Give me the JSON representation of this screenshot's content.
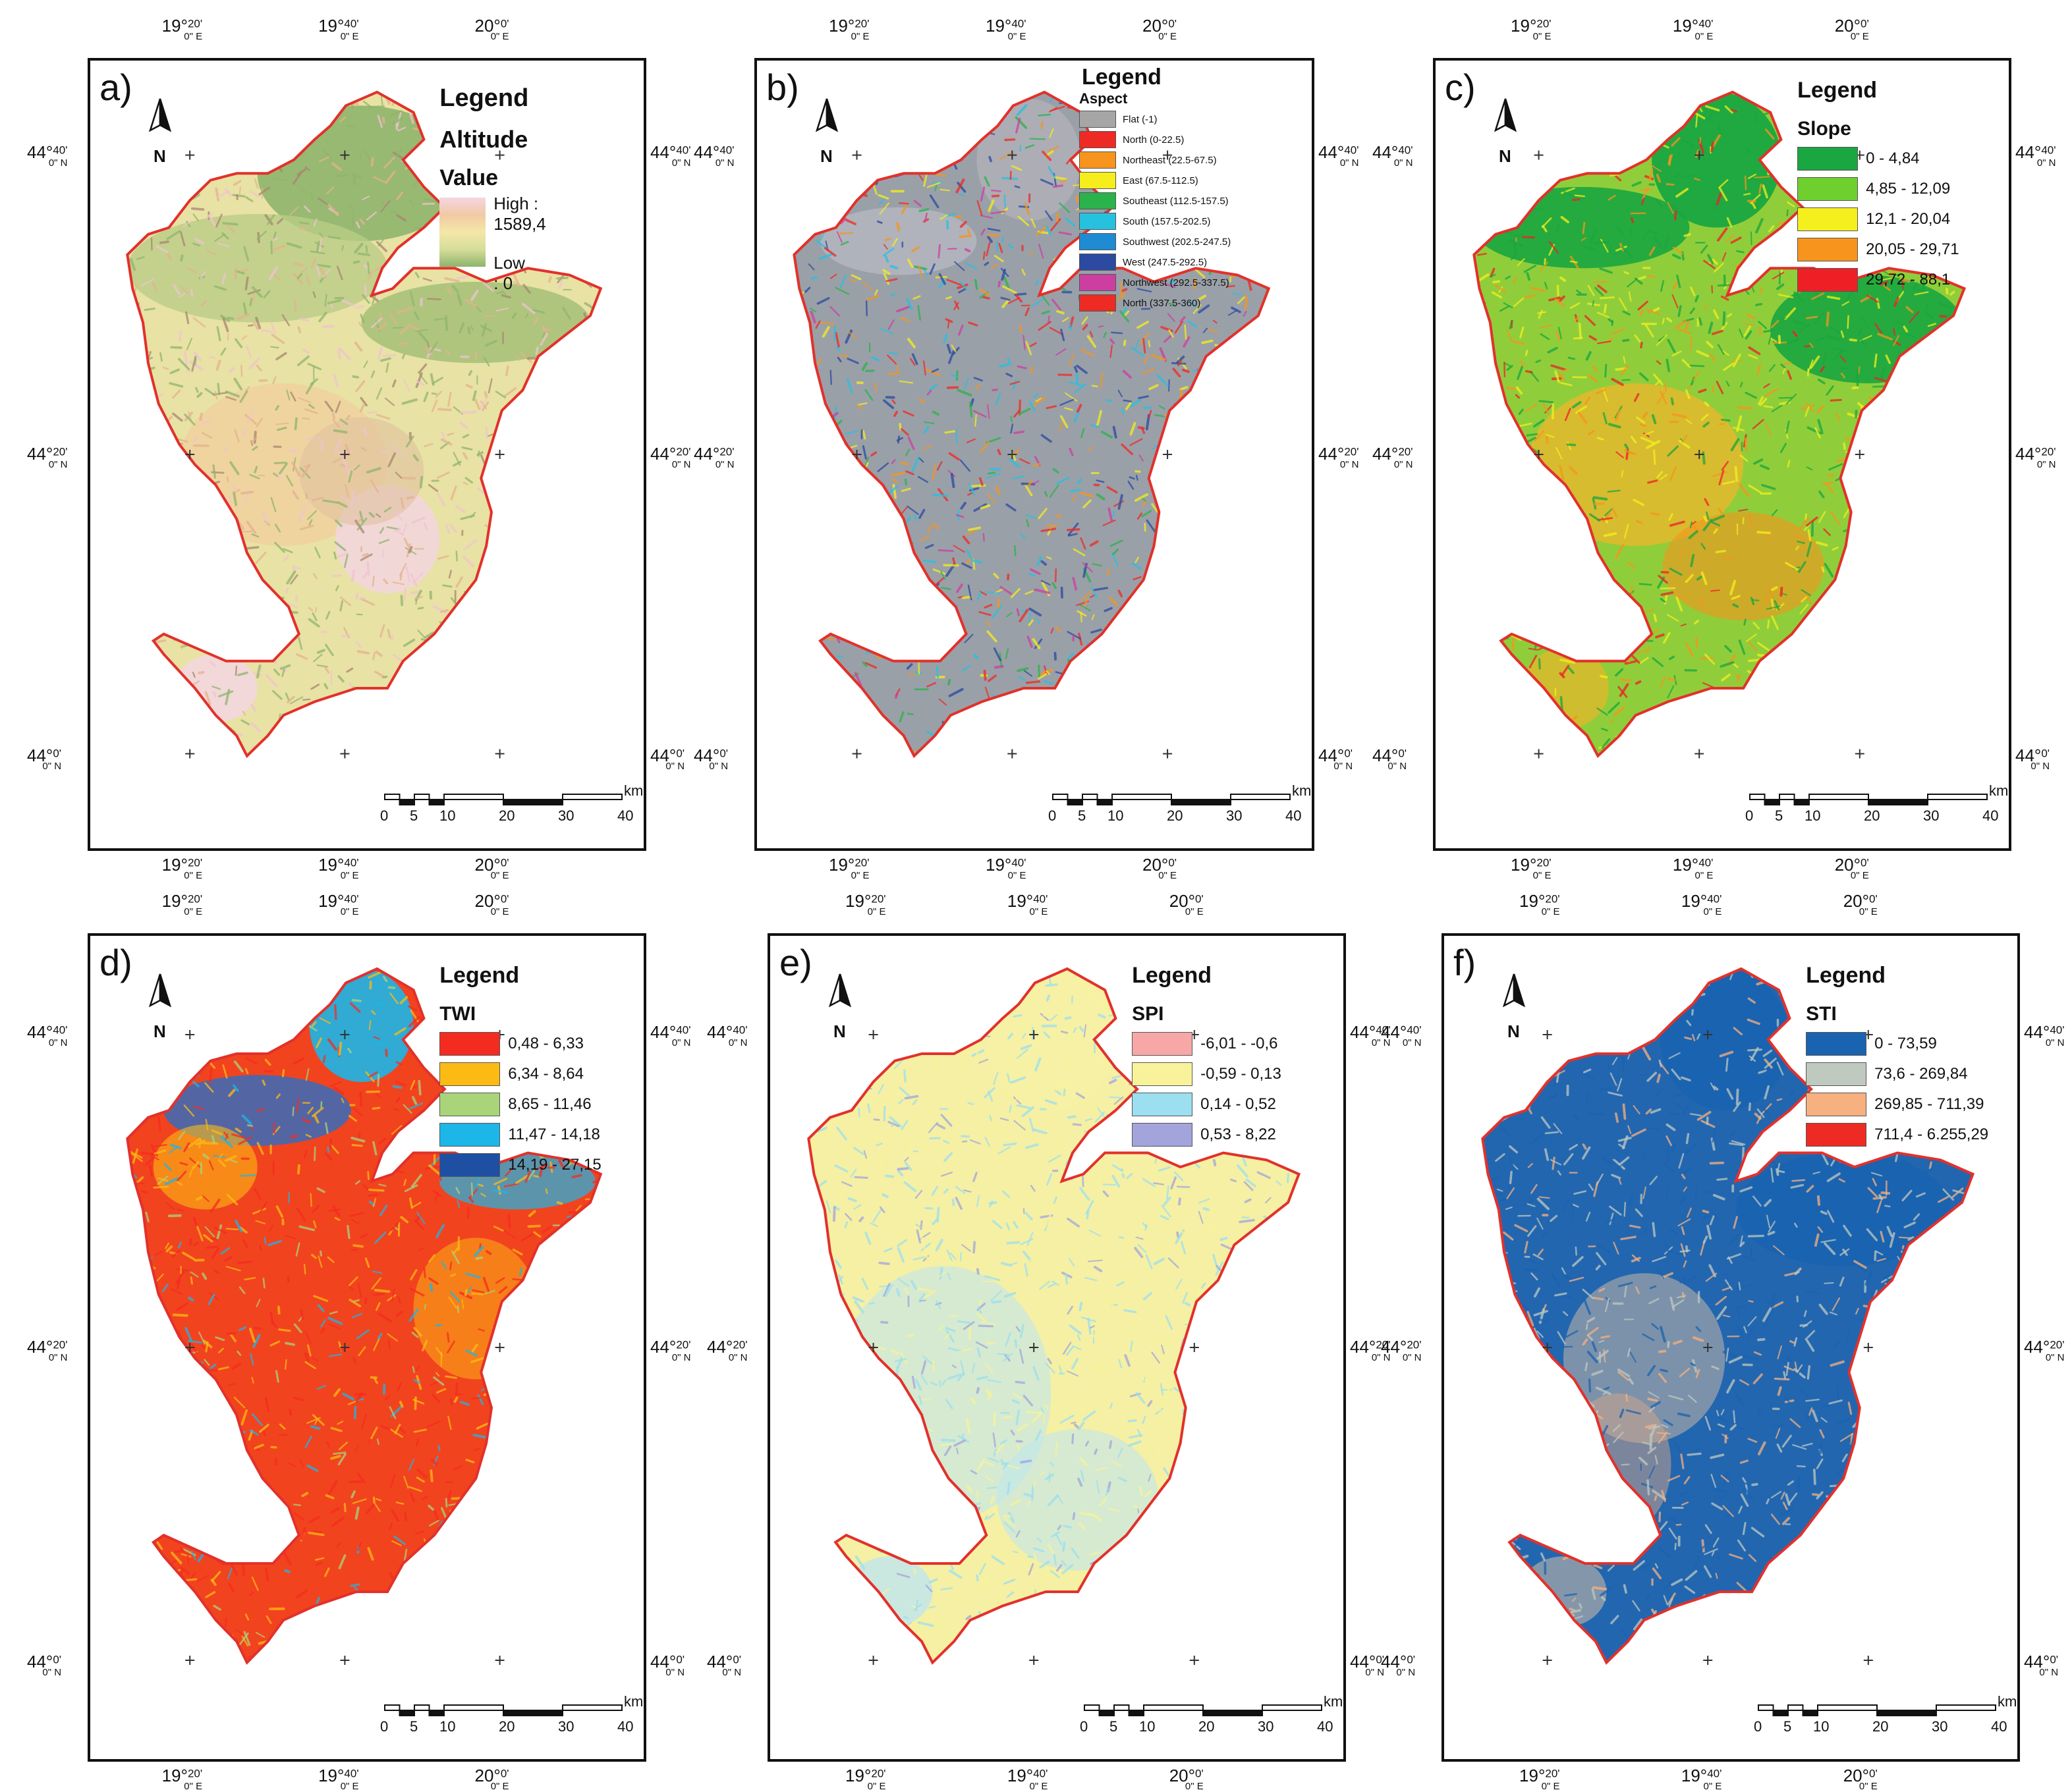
{
  "coords": {
    "lon": [
      "19°",
      "19°",
      "20°"
    ],
    "lon_min": [
      "20'",
      "40'",
      "0'"
    ],
    "lon_sub": [
      "0\" E",
      "0\" E",
      "0\" E"
    ],
    "lat": [
      "44°",
      "44°",
      "44°"
    ],
    "lat_min": [
      "40'",
      "20'",
      "0'"
    ],
    "lat_sub": [
      "0\" N",
      "0\" N",
      "0\" N"
    ]
  },
  "north_letter": "N",
  "scalebar": {
    "ticks": [
      "0",
      "5",
      "10",
      "20",
      "30",
      "40"
    ],
    "unit": "km"
  },
  "colors": {
    "boundary": "#e2312b",
    "frame": "#111111"
  },
  "panels": [
    {
      "id": "a",
      "label": "a)",
      "map": "altitude",
      "legend": {
        "title": "Legend",
        "layer": "Altitude",
        "field": "Value",
        "high": "High : 1589,4",
        "low": "Low : 0",
        "ramp": [
          "#f4d6e2",
          "#f2c9a4",
          "#f4e7a8",
          "#d6dd9b",
          "#8db46c"
        ]
      }
    },
    {
      "id": "b",
      "label": "b)",
      "map": "aspect",
      "legend": {
        "title": "Legend",
        "layer": "Aspect",
        "classes": [
          {
            "label": "Flat (-1)",
            "color": "#a6a6a6"
          },
          {
            "label": "North (0-22.5)",
            "color": "#ee2a24"
          },
          {
            "label": "Northeast (22.5-67.5)",
            "color": "#f7941d"
          },
          {
            "label": "East (67.5-112.5)",
            "color": "#f5ee1c"
          },
          {
            "label": "Southeast (112.5-157.5)",
            "color": "#2ab34a"
          },
          {
            "label": "South (157.5-202.5)",
            "color": "#27c1e0"
          },
          {
            "label": "Southwest (202.5-247.5)",
            "color": "#1e8bd2"
          },
          {
            "label": "West (247.5-292.5)",
            "color": "#2b4aa0"
          },
          {
            "label": "Northwest (292.5-337.5)",
            "color": "#cc3fa0"
          },
          {
            "label": "North (337.5-360)",
            "color": "#ee2a24"
          }
        ]
      }
    },
    {
      "id": "c",
      "label": "c)",
      "map": "slope",
      "legend": {
        "title": "Legend",
        "layer": "Slope",
        "classes": [
          {
            "label": "0 - 4,84",
            "color": "#1aa640"
          },
          {
            "label": "4,85 - 12,09",
            "color": "#6fcf2f"
          },
          {
            "label": "12,1 - 20,04",
            "color": "#f4ef1d"
          },
          {
            "label": "20,05 - 29,71",
            "color": "#f7941d"
          },
          {
            "label": "29,72 - 88,1",
            "color": "#ee2026"
          }
        ]
      }
    },
    {
      "id": "d",
      "label": "d)",
      "map": "twi",
      "legend": {
        "title": "Legend",
        "layer": "TWI",
        "classes": [
          {
            "label": "0,48 - 6,33",
            "color": "#f42c1f"
          },
          {
            "label": "6,34 - 8,64",
            "color": "#fbbb14"
          },
          {
            "label": "8,65 - 11,46",
            "color": "#a9d47a"
          },
          {
            "label": "11,47 - 14,18",
            "color": "#1cb6e8"
          },
          {
            "label": "14,19 - 27,15",
            "color": "#1e4fa3"
          }
        ]
      }
    },
    {
      "id": "e",
      "label": "e)",
      "map": "spi",
      "legend": {
        "title": "Legend",
        "layer": "SPI",
        "classes": [
          {
            "label": "-6,01 - -0,6",
            "color": "#f8a7a7"
          },
          {
            "label": "-0,59 - 0,13",
            "color": "#f8f39a"
          },
          {
            "label": "0,14 - 0,52",
            "color": "#9bdff0"
          },
          {
            "label": "0,53 - 8,22",
            "color": "#a3a4dc"
          }
        ]
      }
    },
    {
      "id": "f",
      "label": "f)",
      "map": "sti",
      "legend": {
        "title": "Legend",
        "layer": "STI",
        "classes": [
          {
            "label": "0 - 73,59",
            "color": "#1a63b0"
          },
          {
            "label": "73,6 - 269,84",
            "color": "#bfc9c0"
          },
          {
            "label": "269,85 - 711,39",
            "color": "#f7b07f"
          },
          {
            "label": "711,4 - 6.255,29",
            "color": "#ee2a24"
          }
        ]
      }
    }
  ]
}
